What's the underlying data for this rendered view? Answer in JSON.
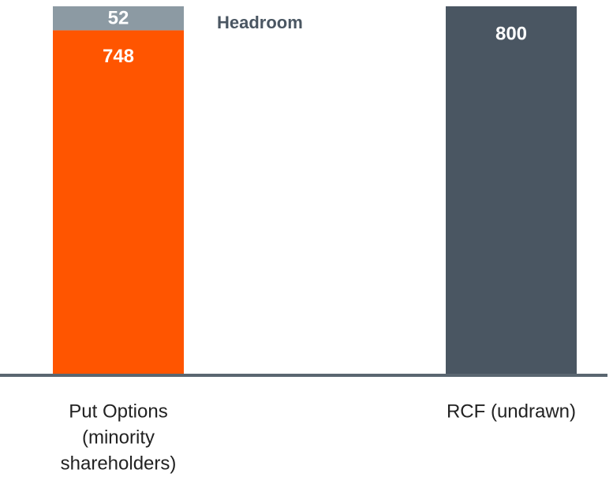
{
  "chart_data": {
    "type": "stacked_bar",
    "categories": [
      [
        "Put Options",
        "(minority",
        "shareholders)"
      ],
      [
        "RCF (undrawn)"
      ]
    ],
    "series": [
      {
        "colors": [
          "#ff5500",
          "#4a5662"
        ],
        "values": [
          748,
          800
        ]
      },
      {
        "name": "Headroom",
        "color": "#8c9aa3",
        "values": [
          52,
          null
        ]
      }
    ],
    "ylim": [
      0,
      800
    ]
  }
}
